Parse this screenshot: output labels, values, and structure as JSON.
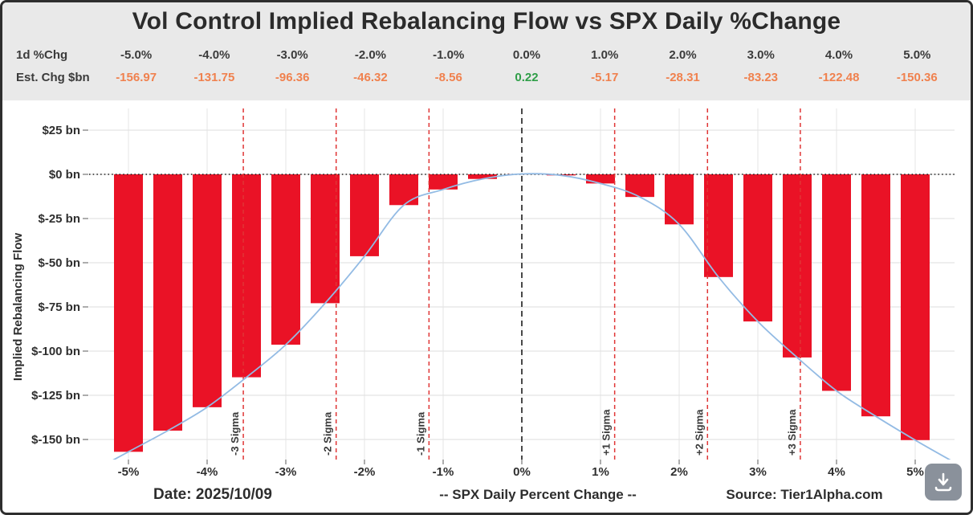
{
  "header": {
    "title": "Vol Control Implied Rebalancing Flow vs SPX Daily %Change",
    "row1_label": "1d %Chg",
    "row2_label": "Est. Chg $bn",
    "pct_changes": [
      "-5.0%",
      "-4.0%",
      "-3.0%",
      "-2.0%",
      "-1.0%",
      "0.0%",
      "1.0%",
      "2.0%",
      "3.0%",
      "4.0%",
      "5.0%"
    ],
    "est_chg_bn": [
      "-156.97",
      "-131.75",
      "-96.36",
      "-46.32",
      "-8.56",
      "0.22",
      "-5.17",
      "-28.31",
      "-83.23",
      "-122.48",
      "-150.36"
    ],
    "negative_color": "#f0814e",
    "positive_color": "#2f9e48"
  },
  "chart_data": {
    "type": "bar",
    "title": "Vol Control Implied Rebalancing Flow vs SPX Daily %Change",
    "xlabel": "-- SPX Daily Percent Change --",
    "ylabel": "Implied Rebalancing Flow",
    "x": [
      -5,
      -4.5,
      -4,
      -3.5,
      -3,
      -2.5,
      -2,
      -1.5,
      -1,
      -0.5,
      0,
      0.5,
      1,
      1.5,
      2,
      2.5,
      3,
      3.5,
      4,
      4.5,
      5
    ],
    "values": [
      -156.97,
      -145.0,
      -131.75,
      -114.8,
      -96.36,
      -72.9,
      -46.32,
      -17.4,
      -8.56,
      -2.6,
      0.22,
      -0.6,
      -5.17,
      -12.8,
      -28.31,
      -58.1,
      -83.23,
      -103.6,
      -122.48,
      -136.9,
      -150.36
    ],
    "curve": {
      "x": [
        -5.5,
        -5,
        -4.5,
        -4,
        -3.5,
        -3,
        -2.5,
        -2,
        -1.5,
        -1,
        -0.5,
        0,
        0.5,
        1,
        1.5,
        2,
        2.5,
        3,
        3.5,
        4,
        4.5,
        5,
        5.5
      ],
      "y": [
        -169,
        -156.97,
        -145.0,
        -131.75,
        -114.8,
        -96.36,
        -72.9,
        -46.32,
        -17.4,
        -8.56,
        -2.6,
        0.22,
        -0.6,
        -5.17,
        -12.8,
        -28.31,
        -58.1,
        -83.23,
        -103.6,
        -122.48,
        -136.9,
        -150.36,
        -163
      ]
    },
    "x_ticks": [
      {
        "v": -5,
        "label": "-5%"
      },
      {
        "v": -4,
        "label": "-4%"
      },
      {
        "v": -3,
        "label": "-3%"
      },
      {
        "v": -2,
        "label": "-2%"
      },
      {
        "v": -1,
        "label": "-1%"
      },
      {
        "v": 0,
        "label": "0%"
      },
      {
        "v": 1,
        "label": "1%"
      },
      {
        "v": 2,
        "label": "2%"
      },
      {
        "v": 3,
        "label": "3%"
      },
      {
        "v": 4,
        "label": "4%"
      },
      {
        "v": 5,
        "label": "5%"
      }
    ],
    "y_ticks": [
      {
        "v": 25,
        "label": "$25 bn"
      },
      {
        "v": 0,
        "label": "$0 bn"
      },
      {
        "v": -25,
        "label": "$-25 bn"
      },
      {
        "v": -50,
        "label": "$-50 bn"
      },
      {
        "v": -75,
        "label": "$-75 bn"
      },
      {
        "v": -100,
        "label": "$-100 bn"
      },
      {
        "v": -125,
        "label": "$-125 bn"
      },
      {
        "v": -150,
        "label": "$-150 bn"
      }
    ],
    "sigma_lines": [
      {
        "v": -3.54,
        "label": "-3 Sigma"
      },
      {
        "v": -2.36,
        "label": "-2 Sigma"
      },
      {
        "v": -1.18,
        "label": "-1 Sigma"
      },
      {
        "v": 1.18,
        "label": "+1 Sigma"
      },
      {
        "v": 2.36,
        "label": "+2 Sigma"
      },
      {
        "v": 3.54,
        "label": "+3 Sigma"
      }
    ],
    "zero_vline": 0,
    "zero_hline": 0,
    "xlim": [
      -5.5,
      5.5
    ],
    "ylim": [
      -161.4,
      37.3
    ],
    "grid": true,
    "bar_color": "#ea1226",
    "curve_color": "#93bbe4",
    "sigma_line_color": "#e03535",
    "zero_line_color": "#1c1c1c",
    "grid_color": "#dedede",
    "axis_text_color": "#2f2f2f"
  },
  "footer": {
    "date": "Date: 2025/10/09",
    "caption": "-- SPX Daily Percent Change --",
    "source": "Source: Tier1Alpha.com"
  },
  "controls": {
    "download_label": "download"
  }
}
